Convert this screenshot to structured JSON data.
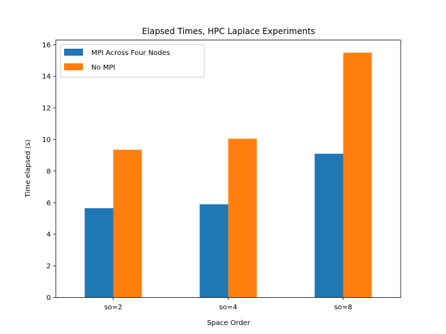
{
  "chart_data": {
    "type": "bar",
    "title": "Elapsed Times, HPC Laplace Experiments",
    "xlabel": "Space Order",
    "ylabel": "Time elapsed (s)",
    "categories": [
      "so=2",
      "so=4",
      "so=8"
    ],
    "series": [
      {
        "name": "MPI Across Four Nodes",
        "values": [
          5.65,
          5.9,
          9.1
        ],
        "color": "#1f77b4"
      },
      {
        "name": "No MPI",
        "values": [
          9.35,
          10.05,
          15.5
        ],
        "color": "#ff7f0e"
      }
    ],
    "ylim": [
      0,
      16.3
    ],
    "yticks": [
      0,
      2,
      4,
      6,
      8,
      10,
      12,
      14,
      16
    ],
    "ytick_labels": [
      "0",
      "2",
      "4",
      "6",
      "8",
      "10",
      "12",
      "14",
      "16"
    ],
    "grid": false,
    "legend_position": "top-left"
  }
}
